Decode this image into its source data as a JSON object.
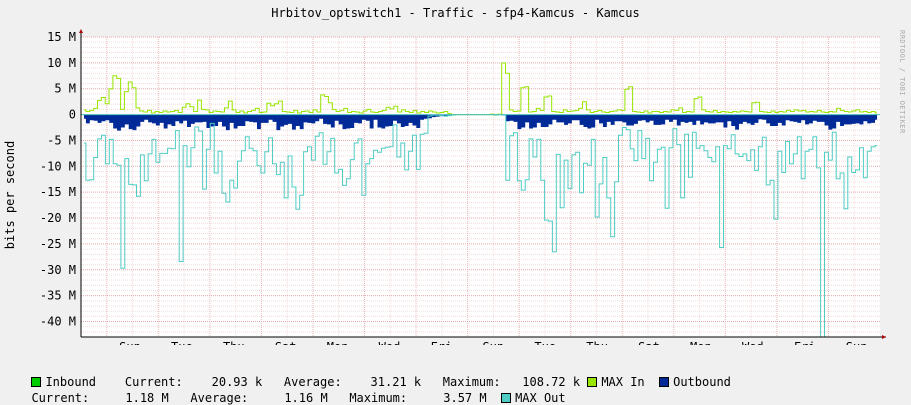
{
  "title": "Hrbitov_optswitch1 - Traffic - sfp4-Kamcus - Kamcus",
  "watermark": "RRDTOOL / TOBI OETIKER",
  "chart_data": {
    "type": "area",
    "ylabel": "bits per second",
    "yunit": "M",
    "ylim": [
      -43,
      15
    ],
    "yticks": [
      {
        "v": 15,
        "label": "15 M"
      },
      {
        "v": 10,
        "label": "10 M"
      },
      {
        "v": 5,
        "label": "5 M"
      },
      {
        "v": 0,
        "label": "0"
      },
      {
        "v": -5,
        "label": "-5 M"
      },
      {
        "v": -10,
        "label": "-10 M"
      },
      {
        "v": -15,
        "label": "-15 M"
      },
      {
        "v": -20,
        "label": "-20 M"
      },
      {
        "v": -25,
        "label": "-25 M"
      },
      {
        "v": -30,
        "label": "-30 M"
      },
      {
        "v": -35,
        "label": "-35 M"
      },
      {
        "v": -40,
        "label": "-40 M"
      }
    ],
    "xlabels": [
      "Sun",
      "Tue",
      "Thu",
      "Sat",
      "Mon",
      "Wed",
      "Fri",
      "Sun",
      "Tue",
      "Thu",
      "Sat",
      "Mon",
      "Wed",
      "Fri",
      "Sun"
    ],
    "grid": true,
    "gap_range": [
      0.47,
      0.52
    ],
    "series": [
      {
        "name": "MAX In",
        "color": "#96e600",
        "values": [
          0.9,
          0.6,
          0.8,
          1.2,
          2.7,
          3.3,
          2.1,
          5.0,
          7.5,
          7.0,
          1.0,
          4.4,
          6.3,
          5.2,
          1.3,
          0.7,
          0.5,
          0.8,
          0.3,
          0.6,
          0.4,
          0.7,
          0.5,
          0.6,
          0.8,
          0.4,
          1.4,
          2.1,
          1.5,
          0.6,
          2.8,
          1.0,
          0.9,
          0.4,
          0.7,
          0.6,
          0.5,
          1.3,
          2.6,
          0.9,
          0.4,
          0.7,
          0.3,
          0.6,
          0.8,
          1.2,
          0.4,
          0.5,
          2.2,
          1.7,
          2.1,
          2.6,
          0.6,
          0.5,
          0.4,
          0.8,
          0.3,
          0.6,
          0.7,
          0.4,
          0.9,
          0.5,
          3.8,
          3.5,
          2.3,
          1.0,
          0.6,
          0.8,
          1.2,
          0.4,
          0.6,
          0.5,
          0.3,
          0.7,
          1.0,
          0.5,
          0.4,
          0.6,
          0.8,
          1.4,
          1.1,
          1.6,
          0.5,
          0.9,
          0.6,
          0.4,
          0.8,
          0.3,
          0.6,
          0.4,
          0.7,
          0.5,
          0.3,
          0.4,
          0.6,
          0.2,
          0.0,
          0.0,
          0.0,
          0.0,
          0.0,
          0.0,
          0.0,
          0.0,
          0.0,
          0.0,
          0.1,
          0.0,
          0.1,
          10.0,
          8.0,
          0.9,
          0.6,
          0.7,
          5.2,
          5.4,
          0.5,
          0.6,
          1.2,
          0.8,
          3.4,
          3.6,
          0.6,
          0.5,
          0.4,
          0.9,
          0.6,
          0.7,
          0.8,
          1.2,
          2.5,
          0.9,
          0.4,
          0.6,
          0.8,
          0.5,
          0.4,
          0.6,
          0.7,
          0.9,
          0.8,
          4.9,
          5.4,
          0.6,
          0.5,
          0.4,
          0.7,
          0.3,
          0.6,
          0.6,
          0.4,
          0.6,
          0.5,
          0.9,
          0.8,
          1.3,
          0.4,
          0.6,
          0.5,
          3.1,
          3.4,
          0.9,
          0.6,
          0.5,
          0.8,
          0.4,
          0.6,
          0.5,
          0.4,
          0.6,
          0.5,
          0.7,
          0.6,
          0.5,
          2.3,
          2.4,
          0.6,
          0.5,
          0.4,
          0.7,
          0.4,
          0.6,
          0.5,
          0.8,
          0.6,
          0.9,
          0.7,
          0.8,
          0.5,
          0.6,
          0.5,
          0.8,
          0.5,
          0.4,
          0.6,
          0.5,
          1.2,
          0.8,
          0.6,
          0.5,
          0.7,
          0.9,
          0.5,
          0.6,
          0.4,
          0.6,
          0.3
        ]
      },
      {
        "name": "MAX Out",
        "color": "#4ecdc4",
        "values": [
          -5.5,
          -12.7,
          -12.6,
          -8.3,
          -4.7,
          -4.0,
          -9.5,
          -4.8,
          -9.5,
          -9.8,
          -29.7,
          -8.5,
          -13.5,
          -13.6,
          -15.8,
          -7.8,
          -12.8,
          -7.6,
          -4.8,
          -9.2,
          -7.5,
          -7.5,
          -6.5,
          -6.6,
          -3.1,
          -28.4,
          -6.0,
          -10.1,
          -6.4,
          -2.4,
          -3.2,
          -14.4,
          -6.7,
          -1.7,
          -11.3,
          -7.1,
          -15.2,
          -16.9,
          -12.7,
          -14.2,
          -9.0,
          -7.0,
          -4.3,
          -6.5,
          -7.0,
          -9.9,
          -11.3,
          -7.2,
          -4.5,
          -9.5,
          -11.6,
          -9.2,
          -16.1,
          -8.0,
          -14.0,
          -18.3,
          -15.6,
          -7.2,
          -6.2,
          -8.8,
          -4.2,
          -3.5,
          -9.6,
          -7.2,
          -4.6,
          -11.3,
          -10.6,
          -13.7,
          -12.4,
          -8.7,
          -5.5,
          -4.7,
          -15.6,
          -9.5,
          -8.5,
          -6.9,
          -7.3,
          -6.5,
          -6.3,
          -6.2,
          -2.0,
          -8.2,
          -5.5,
          -10.7,
          -7.1,
          -4.0,
          -10.6,
          -3.8,
          -3.6,
          -0.3,
          -0.1,
          -0.1,
          -0.2,
          -0.3,
          -0.2,
          -0.1,
          0.0,
          0.0,
          0.0,
          0.0,
          0.0,
          0.0,
          0.0,
          0.0,
          0.0,
          0.0,
          -0.1,
          0.0,
          -0.1,
          -12.7,
          -4.1,
          -3.5,
          -12.8,
          -14.6,
          -12.6,
          -4.7,
          -8.2,
          -4.8,
          -12.7,
          -20.4,
          -20.6,
          -26.5,
          -7.7,
          -18.0,
          -8.8,
          -14.3,
          -7.8,
          -7.3,
          -15.1,
          -9.4,
          -9.8,
          -4.8,
          -19.8,
          -13.4,
          -8.3,
          -16.1,
          -23.6,
          -13.0,
          -4.0,
          -2.5,
          -2.9,
          -6.6,
          -8.9,
          -3.1,
          -8.5,
          -4.6,
          -12.8,
          -9.2,
          -6.7,
          -6.3,
          -18.1,
          -6.4,
          -2.7,
          -5.8,
          -16.1,
          -3.8,
          -12.1,
          -3.4,
          -6.5,
          -6.0,
          -7.0,
          -8.3,
          -9.1,
          -6.2,
          -25.7,
          -6.0,
          -6.6,
          -3.9,
          -7.6,
          -8.1,
          -7.6,
          -8.9,
          -6.8,
          -10.8,
          -6.2,
          -4.4,
          -13.6,
          -12.7,
          -20.2,
          -7.1,
          -11.2,
          -5.2,
          -9.5,
          -7.6,
          -4.3,
          -12.4,
          -7.1,
          -6.7,
          -4.3,
          -10.3,
          -43.0,
          -7.3,
          -8.8,
          -3.4,
          -12.4,
          -11.3,
          -18.2,
          -8.2,
          -11.2,
          -10.7,
          -6.4,
          -12.2,
          -7.1,
          -6.2,
          -6.0
        ]
      },
      {
        "name": "Outbound",
        "color": "#002a97",
        "values": [
          -0.8,
          -1.7,
          -1.1,
          -1.2,
          -1.6,
          -1.3,
          -1.1,
          -1.6,
          -2.7,
          -3.1,
          -2.5,
          -1.9,
          -2.8,
          -3.0,
          -2.3,
          -1.4,
          -1.0,
          -1.5,
          -1.7,
          -2.1,
          -1.6,
          -2.7,
          -1.9,
          -2.2,
          -1.3,
          -1.7,
          -1.2,
          -2.4,
          -1.8,
          -1.5,
          -1.5,
          -1.4,
          -2.6,
          -2.3,
          -2.2,
          -1.4,
          -2.3,
          -3.0,
          -1.6,
          -2.7,
          -2.2,
          -2.2,
          -1.3,
          -1.4,
          -1.5,
          -2.8,
          -1.6,
          -1.6,
          -1.0,
          -1.4,
          -3.0,
          -2.3,
          -2.0,
          -1.8,
          -2.9,
          -2.2,
          -2.8,
          -1.5,
          -1.6,
          -1.7,
          -1.3,
          -0.8,
          -1.8,
          -1.9,
          -2.5,
          -1.2,
          -1.9,
          -2.8,
          -2.7,
          -2.6,
          -1.6,
          -1.7,
          -1.0,
          -1.2,
          -2.7,
          -1.0,
          -2.5,
          -2.7,
          -2.3,
          -2.2,
          -1.2,
          -1.7,
          -2.4,
          -2.2,
          -1.6,
          -2.1,
          -2.6,
          -1.0,
          -0.8,
          -0.7,
          -0.5,
          -0.4,
          -0.3,
          -0.3,
          -0.2,
          -0.1,
          0.0,
          0.0,
          0.0,
          0.0,
          0.0,
          0.0,
          0.0,
          0.0,
          0.0,
          0.0,
          -0.1,
          0.0,
          -0.1,
          -1.3,
          -1.2,
          -1.4,
          -2.8,
          -2.5,
          -1.5,
          -2.7,
          -2.5,
          -1.6,
          -2.4,
          -2.4,
          -1.9,
          -1.0,
          -1.5,
          -1.5,
          -2.0,
          -1.7,
          -1.1,
          -1.1,
          -2.0,
          -2.4,
          -2.7,
          -2.5,
          -1.0,
          -1.7,
          -2.4,
          -1.4,
          -2.0,
          -1.3,
          -1.3,
          -1.5,
          -2.1,
          -2.1,
          -1.8,
          -1.2,
          -1.1,
          -1.5,
          -1.2,
          -2.0,
          -2.0,
          -1.9,
          -1.0,
          -1.4,
          -1.0,
          -2.1,
          -1.4,
          -1.6,
          -1.4,
          -2.0,
          -1.2,
          -1.9,
          -1.5,
          -1.7,
          -1.7,
          -1.5,
          -1.5,
          -2.5,
          -1.3,
          -2.2,
          -2.9,
          -1.8,
          -1.4,
          -1.7,
          -2.0,
          -1.6,
          -0.9,
          -1.0,
          -1.7,
          -2.2,
          -2.2,
          -1.6,
          -2.1,
          -1.1,
          -1.3,
          -1.4,
          -1.6,
          -1.1,
          -1.9,
          -1.7,
          -1.2,
          -1.4,
          -1.4,
          -2.1,
          -2.9,
          -2.7,
          -1.4,
          -2.2,
          -1.9,
          -1.9,
          -1.8,
          -1.7,
          -1.9,
          -1.3,
          -1.7,
          -1.6,
          -1.0
        ]
      },
      {
        "name": "Inbound",
        "color": "#00cc00",
        "values": [
          0.03,
          0.02,
          0.02,
          0.03,
          0.02,
          0.03,
          0.02,
          0.03,
          0.02,
          0.03,
          0.02,
          0.03,
          0.02,
          0.03,
          0.02,
          0.03,
          0.02,
          0.03,
          0.02,
          0.03
        ]
      }
    ]
  },
  "legend": {
    "row1": [
      {
        "swatch_color": "#00cc00",
        "text": "Inbound    Current:    20.93 k   Average:    31.21 k   Maximum:   108.72 k "
      },
      {
        "swatch_color": "#96e600",
        "text": "MAX In  "
      },
      {
        "swatch_color": "#002a97",
        "text": "Outbound"
      }
    ],
    "row2": [
      {
        "text": "Current:     1.18 M   Average:     1.16 M   Maximum:     3.57 M  "
      },
      {
        "swatch_color": "#4ecdc4",
        "text": "MAX Out"
      }
    ]
  }
}
